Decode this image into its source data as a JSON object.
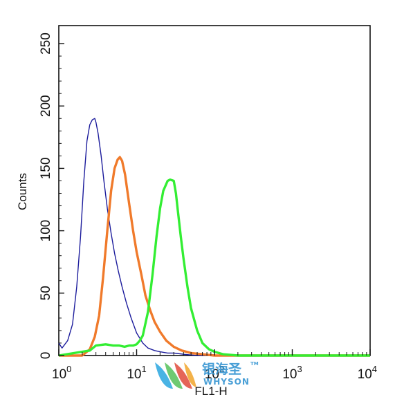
{
  "chart_data": {
    "type": "line",
    "title": "",
    "xlabel": "FL1-H",
    "ylabel": "Counts",
    "x_scale": "log",
    "xlim": [
      1,
      10000
    ],
    "ylim": [
      0,
      260
    ],
    "x_ticks": [
      {
        "base": "10",
        "exp": "0",
        "value": 1
      },
      {
        "base": "10",
        "exp": "1",
        "value": 10
      },
      {
        "base": "10",
        "exp": "2",
        "value": 100
      },
      {
        "base": "10",
        "exp": "3",
        "value": 1000
      },
      {
        "base": "10",
        "exp": "4",
        "value": 10000
      }
    ],
    "y_ticks": [
      0,
      50,
      100,
      150,
      200,
      250
    ],
    "grid": false,
    "legend": "none",
    "series": [
      {
        "color": "#1c1c9c",
        "x": [
          1,
          1.1,
          1.3,
          1.5,
          1.7,
          1.9,
          2.1,
          2.3,
          2.5,
          2.7,
          2.9,
          3.0,
          3.2,
          3.5,
          3.8,
          4.2,
          4.7,
          5.2,
          5.8,
          6.5,
          7.4,
          8.5,
          10,
          12,
          14,
          17,
          20,
          25,
          30,
          40,
          60,
          100,
          1000,
          10000
        ],
        "y": [
          10,
          6,
          12,
          25,
          55,
          95,
          140,
          172,
          185,
          189,
          190,
          187,
          178,
          160,
          140,
          118,
          98,
          82,
          68,
          55,
          42,
          30,
          18,
          10,
          6,
          4,
          3,
          2,
          2,
          1,
          0,
          0,
          0,
          0
        ]
      },
      {
        "color": "#f07a2b",
        "x": [
          1,
          2,
          2.5,
          2.9,
          3.3,
          3.7,
          4.2,
          4.7,
          5.2,
          5.7,
          6.1,
          6.5,
          7.1,
          8.0,
          9.0,
          10,
          11.5,
          13,
          15,
          17,
          20,
          24,
          30,
          38,
          50,
          70,
          100,
          200,
          10000
        ],
        "y": [
          0,
          0,
          5,
          15,
          32,
          62,
          100,
          132,
          150,
          157,
          159,
          156,
          145,
          122,
          100,
          83,
          65,
          48,
          36,
          27,
          19,
          12,
          7,
          4,
          2,
          1,
          0,
          0,
          0
        ]
      },
      {
        "color": "#33ee33",
        "x": [
          1,
          2.5,
          3,
          4,
          5,
          6,
          7,
          8,
          9,
          10,
          11,
          12,
          14,
          16,
          18,
          20,
          22,
          25,
          27,
          30,
          32,
          34,
          37,
          40,
          45,
          50,
          60,
          70,
          85,
          100,
          130,
          200,
          10000
        ],
        "y": [
          0,
          4,
          8,
          9,
          8,
          8,
          7,
          8,
          8,
          9,
          12,
          16,
          35,
          65,
          95,
          118,
          132,
          140,
          141,
          140,
          130,
          115,
          95,
          78,
          55,
          38,
          20,
          10,
          5,
          3,
          1,
          0,
          0
        ]
      }
    ]
  },
  "watermark": {
    "brand_cn": "银海圣",
    "brand_en": "WHYSON",
    "trademark": "TM"
  }
}
